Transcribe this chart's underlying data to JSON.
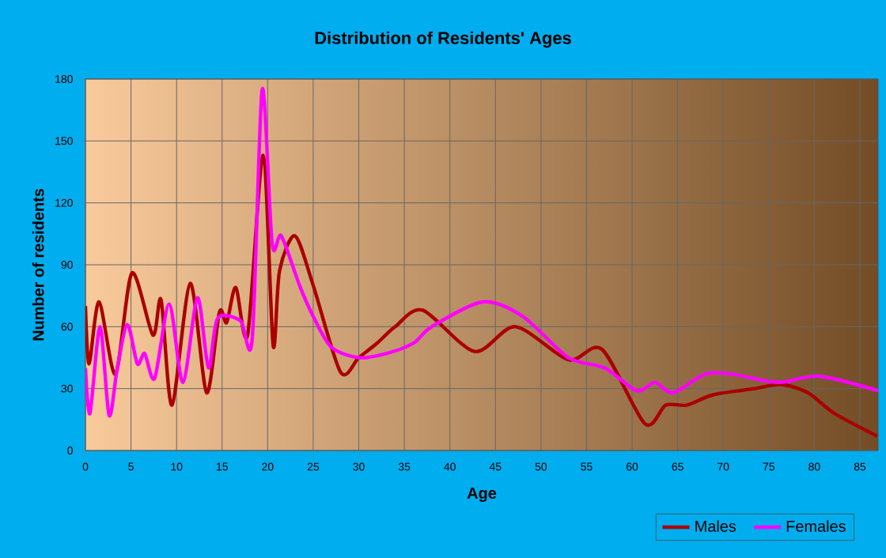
{
  "chart_data": {
    "type": "line",
    "title": "Distribution of Residents' Ages",
    "xlabel": "Age",
    "ylabel": "Number of residents",
    "xlim": [
      0,
      87
    ],
    "xticks": [
      0,
      5,
      10,
      15,
      20,
      25,
      30,
      35,
      40,
      45,
      50,
      55,
      60,
      65,
      70,
      75,
      80,
      85
    ],
    "ylim": [
      0,
      180
    ],
    "yticks": [
      0,
      30,
      60,
      90,
      120,
      150,
      180
    ],
    "grid": true,
    "legend": "bottom right",
    "marker": "none",
    "line_style": "solid",
    "series": [
      {
        "name": "Males",
        "color": "#aa0000",
        "x": [
          0,
          0.4,
          1.5,
          3.3,
          5.1,
          7.4,
          8.3,
          9.5,
          11.5,
          13.3,
          14.7,
          15.5,
          16.5,
          17.8,
          19.5,
          20.6,
          21.3,
          23,
          25,
          28,
          30,
          32,
          34,
          37,
          42.7,
          47.2,
          53,
          56.7,
          61.4,
          63.7,
          66,
          68.9,
          73.5,
          76.4,
          79.3,
          82.2,
          86.9
        ],
        "values": [
          70,
          42,
          72,
          37,
          86,
          56,
          73,
          22,
          81,
          28,
          67,
          62,
          79,
          56,
          143,
          51,
          87,
          104,
          80,
          38,
          45,
          52,
          60,
          68,
          48,
          60,
          44,
          49,
          13,
          22,
          22,
          27,
          30,
          32,
          28,
          18,
          7
        ]
      },
      {
        "name": "Females",
        "color": "#ff00ff",
        "x": [
          0,
          0.5,
          1.6,
          2.6,
          3.5,
          4.6,
          5.7,
          6.5,
          7.6,
          9.2,
          10.7,
          12.3,
          13.5,
          14.5,
          17,
          18.3,
          19.4,
          20.5,
          21.5,
          23.5,
          25,
          27,
          30,
          33,
          36,
          38,
          43.6,
          48,
          53,
          57,
          60.5,
          62.5,
          64.5,
          68,
          71,
          76,
          80.5,
          87
        ],
        "values": [
          40,
          18,
          60,
          17,
          40,
          61,
          42,
          47,
          35,
          71,
          33,
          74,
          40,
          64,
          63,
          54,
          175,
          100,
          104,
          80,
          65,
          50,
          45,
          47,
          52,
          60,
          72,
          65,
          45,
          40,
          29,
          33,
          28,
          37,
          37,
          33,
          36,
          29
        ]
      }
    ]
  }
}
